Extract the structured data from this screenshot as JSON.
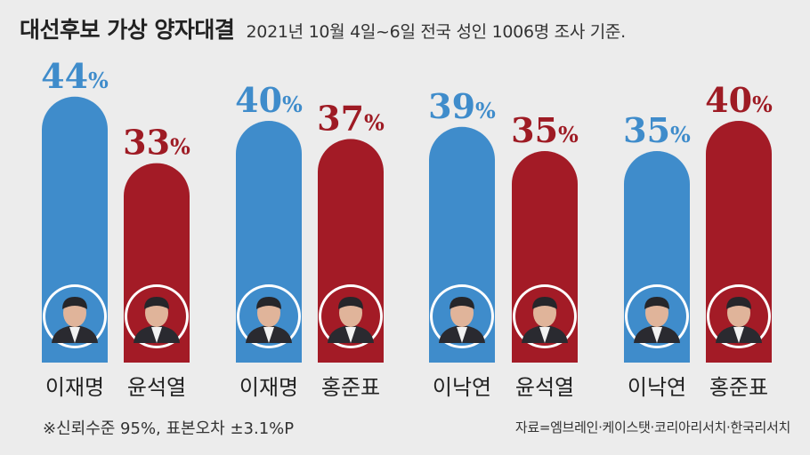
{
  "header": {
    "title": "대선후보 가상 양자대결",
    "subtitle": "2021년 10월 4일~6일 전국 성인 1006명 조사 기준."
  },
  "colors": {
    "blue": "#3f8ccb",
    "red": "#a31b26",
    "blue_text": "#3f8ccb",
    "red_text": "#9e1b24"
  },
  "footer": {
    "note": "※신뢰수준 95%, 표본오차 ±3.1%P",
    "source": "자료=엠브레인·케이스탯·코리아리서치·한국리서치"
  },
  "chart_data": {
    "type": "bar",
    "unit": "%",
    "groups": [
      {
        "bars": [
          {
            "name": "이재명",
            "value": 44,
            "color": "blue",
            "photo": "lee-jae-myung-portrait"
          },
          {
            "name": "윤석열",
            "value": 33,
            "color": "red",
            "photo": "yoon-suk-yeol-portrait"
          }
        ]
      },
      {
        "bars": [
          {
            "name": "이재명",
            "value": 40,
            "color": "blue",
            "photo": "lee-jae-myung-portrait"
          },
          {
            "name": "홍준표",
            "value": 37,
            "color": "red",
            "photo": "hong-joon-pyo-portrait"
          }
        ]
      },
      {
        "bars": [
          {
            "name": "이낙연",
            "value": 39,
            "color": "blue",
            "photo": "lee-nak-yon-portrait"
          },
          {
            "name": "윤석열",
            "value": 35,
            "color": "red",
            "photo": "yoon-suk-yeol-portrait"
          }
        ]
      },
      {
        "bars": [
          {
            "name": "이낙연",
            "value": 35,
            "color": "blue",
            "photo": "lee-nak-yon-portrait"
          },
          {
            "name": "홍준표",
            "value": 40,
            "color": "red",
            "photo": "hong-joon-pyo-portrait"
          }
        ]
      }
    ]
  }
}
